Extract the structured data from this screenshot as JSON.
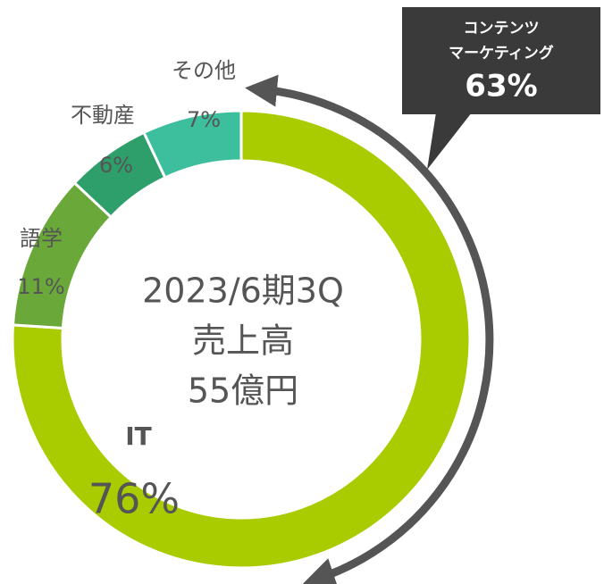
{
  "chart_data": {
    "type": "donut",
    "categories": [
      "IT",
      "語学",
      "不動産",
      "その他"
    ],
    "values": [
      76,
      11,
      6,
      7
    ],
    "value_labels": [
      "76%",
      "11%",
      "6%",
      "7%"
    ],
    "colors": [
      "#a8cc00",
      "#6aa83a",
      "#2e9e6a",
      "#3dbf9e"
    ],
    "center_text": [
      "2023/6期3Q",
      "売上高",
      "55億円"
    ],
    "callout": {
      "lines": [
        "コンテンツ",
        "マーケティング"
      ],
      "value": 63,
      "value_label": "63%"
    }
  }
}
